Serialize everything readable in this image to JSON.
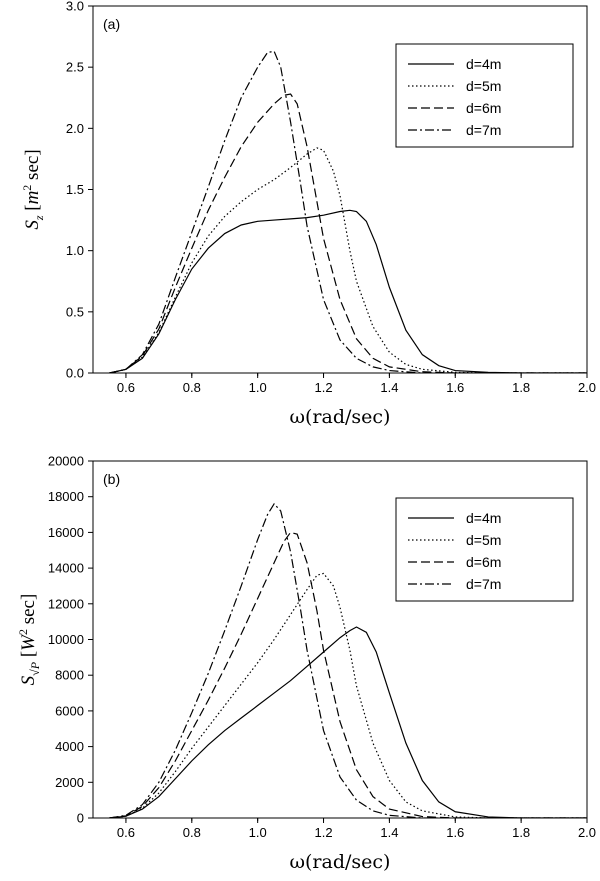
{
  "chart_data": [
    {
      "type": "line",
      "panel_label": "(a)",
      "xlabel": "ω(rad/sec)",
      "ylabel_symbol": "S",
      "ylabel_subscript": "z",
      "ylabel_unit_base": "m",
      "ylabel_unit_exp": "2",
      "ylabel_unit_tail": " sec",
      "xlim": [
        0.5,
        2.0
      ],
      "ylim": [
        0.0,
        3.0
      ],
      "xticks": [
        "0.6",
        "0.8",
        "1.0",
        "1.2",
        "1.4",
        "1.6",
        "1.8",
        "2.0"
      ],
      "yticks": [
        "0.0",
        "0.5",
        "1.0",
        "1.5",
        "2.0",
        "2.5",
        "3.0"
      ],
      "grid": false,
      "legend_position": "top-right",
      "series": [
        {
          "name": "d=4m",
          "dash": "solid",
          "x": [
            0.55,
            0.6,
            0.65,
            0.7,
            0.75,
            0.8,
            0.85,
            0.9,
            0.95,
            1.0,
            1.05,
            1.1,
            1.15,
            1.2,
            1.25,
            1.28,
            1.3,
            1.33,
            1.36,
            1.4,
            1.45,
            1.5,
            1.55,
            1.6,
            1.7,
            1.8,
            2.0
          ],
          "y": [
            0.0,
            0.03,
            0.12,
            0.32,
            0.6,
            0.85,
            1.02,
            1.14,
            1.21,
            1.24,
            1.25,
            1.26,
            1.27,
            1.29,
            1.32,
            1.33,
            1.32,
            1.24,
            1.05,
            0.7,
            0.35,
            0.15,
            0.06,
            0.02,
            0.005,
            0.0,
            0.0
          ]
        },
        {
          "name": "d=5m",
          "dash": "dotted",
          "x": [
            0.55,
            0.6,
            0.65,
            0.7,
            0.75,
            0.8,
            0.85,
            0.9,
            0.95,
            1.0,
            1.05,
            1.1,
            1.15,
            1.18,
            1.2,
            1.23,
            1.25,
            1.28,
            1.3,
            1.35,
            1.4,
            1.45,
            1.5,
            1.6,
            1.7,
            2.0
          ],
          "y": [
            0.0,
            0.03,
            0.13,
            0.33,
            0.62,
            0.9,
            1.12,
            1.28,
            1.4,
            1.5,
            1.58,
            1.68,
            1.79,
            1.84,
            1.82,
            1.65,
            1.45,
            1.0,
            0.75,
            0.38,
            0.17,
            0.07,
            0.03,
            0.005,
            0.0,
            0.0
          ]
        },
        {
          "name": "d=6m",
          "dash": "dashed",
          "x": [
            0.55,
            0.6,
            0.65,
            0.7,
            0.75,
            0.8,
            0.85,
            0.9,
            0.95,
            1.0,
            1.05,
            1.08,
            1.1,
            1.12,
            1.15,
            1.18,
            1.2,
            1.25,
            1.3,
            1.35,
            1.4,
            1.5,
            1.6,
            2.0
          ],
          "y": [
            0.0,
            0.03,
            0.14,
            0.36,
            0.7,
            1.02,
            1.33,
            1.6,
            1.85,
            2.05,
            2.2,
            2.27,
            2.28,
            2.2,
            1.85,
            1.4,
            1.1,
            0.6,
            0.28,
            0.12,
            0.05,
            0.01,
            0.0,
            0.0
          ]
        },
        {
          "name": "d=7m",
          "dash": "dashdot",
          "x": [
            0.55,
            0.6,
            0.65,
            0.7,
            0.75,
            0.8,
            0.85,
            0.9,
            0.95,
            1.0,
            1.03,
            1.05,
            1.07,
            1.1,
            1.13,
            1.15,
            1.2,
            1.25,
            1.3,
            1.35,
            1.4,
            1.5,
            2.0
          ],
          "y": [
            0.0,
            0.03,
            0.15,
            0.4,
            0.78,
            1.15,
            1.52,
            1.9,
            2.25,
            2.5,
            2.62,
            2.63,
            2.5,
            2.05,
            1.55,
            1.2,
            0.6,
            0.27,
            0.12,
            0.05,
            0.02,
            0.0,
            0.0
          ]
        }
      ]
    },
    {
      "type": "line",
      "panel_label": "(b)",
      "xlabel": "ω(rad/sec)",
      "ylabel_symbol": "S",
      "ylabel_subscript": "√P",
      "ylabel_unit_base": "W",
      "ylabel_unit_exp": "2",
      "ylabel_unit_tail": " sec",
      "xlim": [
        0.5,
        2.0
      ],
      "ylim": [
        0,
        20000
      ],
      "xticks": [
        "0.6",
        "0.8",
        "1.0",
        "1.2",
        "1.4",
        "1.6",
        "1.8",
        "2.0"
      ],
      "yticks": [
        "0",
        "2000",
        "4000",
        "6000",
        "8000",
        "10000",
        "12000",
        "14000",
        "16000",
        "18000",
        "20000"
      ],
      "grid": false,
      "legend_position": "top-right",
      "series": [
        {
          "name": "d=4m",
          "dash": "solid",
          "x": [
            0.55,
            0.6,
            0.65,
            0.7,
            0.75,
            0.8,
            0.85,
            0.9,
            0.95,
            1.0,
            1.05,
            1.1,
            1.15,
            1.2,
            1.25,
            1.28,
            1.3,
            1.33,
            1.36,
            1.4,
            1.45,
            1.5,
            1.55,
            1.6,
            1.7,
            1.8,
            2.0
          ],
          "y": [
            0,
            100,
            500,
            1200,
            2200,
            3200,
            4100,
            4900,
            5600,
            6300,
            7000,
            7700,
            8500,
            9300,
            10100,
            10500,
            10700,
            10400,
            9300,
            7000,
            4200,
            2100,
            900,
            350,
            60,
            0,
            0
          ]
        },
        {
          "name": "d=5m",
          "dash": "dotted",
          "x": [
            0.55,
            0.6,
            0.65,
            0.7,
            0.75,
            0.8,
            0.85,
            0.9,
            0.95,
            1.0,
            1.05,
            1.1,
            1.15,
            1.18,
            1.2,
            1.23,
            1.25,
            1.28,
            1.3,
            1.35,
            1.4,
            1.45,
            1.5,
            1.6,
            1.7,
            2.0
          ],
          "y": [
            0,
            100,
            550,
            1400,
            2600,
            3900,
            5100,
            6300,
            7500,
            8700,
            10000,
            11400,
            12800,
            13600,
            13700,
            13000,
            11800,
            9400,
            7400,
            4200,
            2100,
            900,
            400,
            60,
            0,
            0
          ]
        },
        {
          "name": "d=6m",
          "dash": "dashed",
          "x": [
            0.55,
            0.6,
            0.65,
            0.7,
            0.75,
            0.8,
            0.85,
            0.9,
            0.95,
            1.0,
            1.05,
            1.08,
            1.1,
            1.12,
            1.15,
            1.18,
            1.2,
            1.25,
            1.3,
            1.35,
            1.4,
            1.5,
            1.6,
            2.0
          ],
          "y": [
            0,
            120,
            650,
            1700,
            3200,
            4900,
            6600,
            8400,
            10300,
            12300,
            14300,
            15500,
            16000,
            15900,
            14300,
            11600,
            9400,
            5400,
            2700,
            1200,
            500,
            80,
            0,
            0
          ]
        },
        {
          "name": "d=7m",
          "dash": "dashdot",
          "x": [
            0.55,
            0.6,
            0.65,
            0.7,
            0.75,
            0.8,
            0.85,
            0.9,
            0.95,
            1.0,
            1.03,
            1.05,
            1.07,
            1.1,
            1.13,
            1.15,
            1.2,
            1.25,
            1.3,
            1.35,
            1.4,
            1.5,
            2.0
          ],
          "y": [
            0,
            150,
            750,
            2000,
            3800,
            5900,
            8100,
            10500,
            13000,
            15600,
            17000,
            17600,
            17200,
            14900,
            11700,
            9400,
            4900,
            2300,
            1000,
            400,
            150,
            0,
            0
          ]
        }
      ]
    }
  ]
}
